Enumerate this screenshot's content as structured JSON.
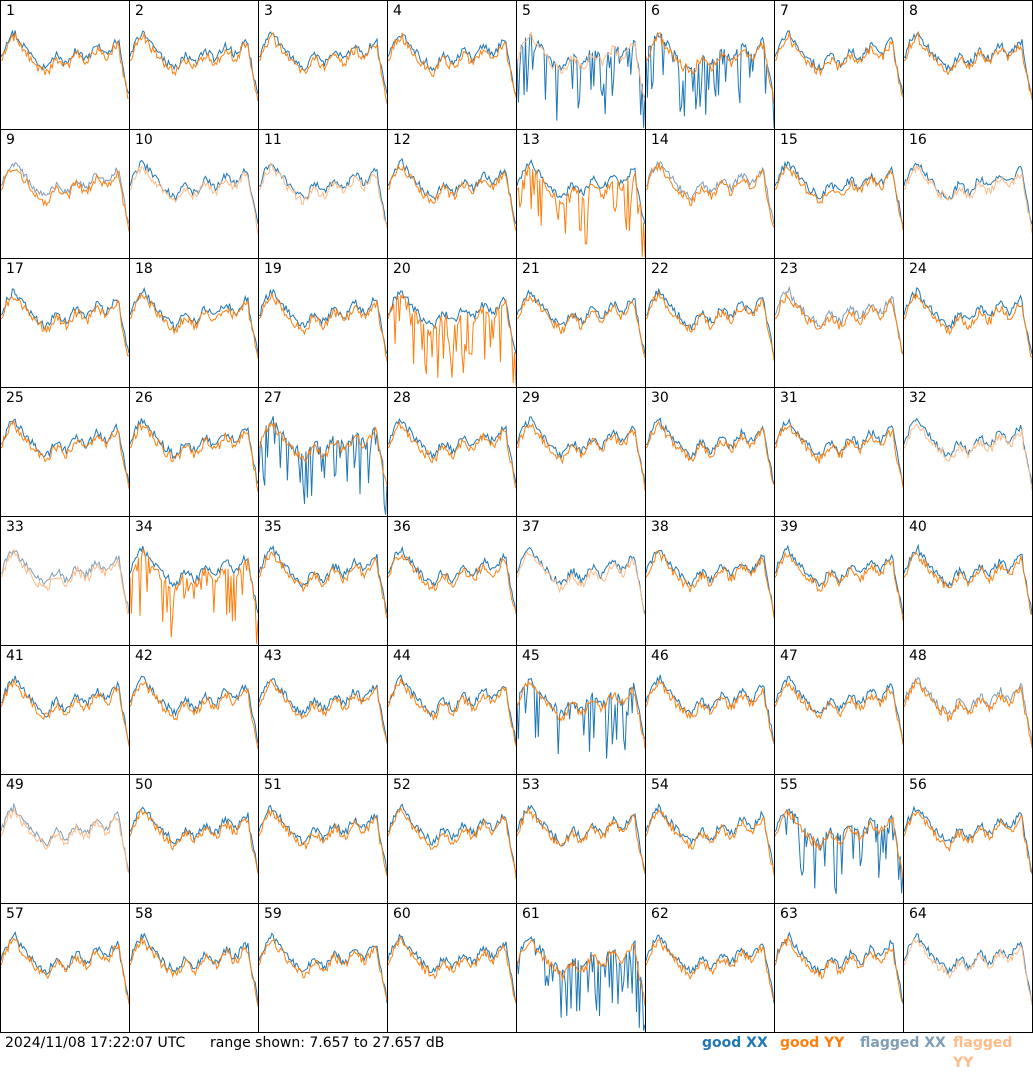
{
  "chart_data": {
    "type": "line",
    "layout": "8x8 small multiples",
    "panels": [
      "1",
      "2",
      "3",
      "4",
      "5",
      "6",
      "7",
      "8",
      "9",
      "10",
      "11",
      "12",
      "13",
      "14",
      "15",
      "16",
      "17",
      "18",
      "19",
      "20",
      "21",
      "22",
      "23",
      "24",
      "25",
      "26",
      "27",
      "28",
      "29",
      "30",
      "31",
      "32",
      "33",
      "34",
      "35",
      "36",
      "37",
      "38",
      "39",
      "40",
      "41",
      "42",
      "43",
      "44",
      "45",
      "46",
      "47",
      "48",
      "49",
      "50",
      "51",
      "52",
      "53",
      "54",
      "55",
      "56",
      "57",
      "58",
      "59",
      "60",
      "61",
      "62",
      "63",
      "64"
    ],
    "ylim": [
      7.657,
      27.657
    ],
    "unit": "dB",
    "series_legend": [
      {
        "name": "good XX",
        "color": "#1f77b4"
      },
      {
        "name": "good YY",
        "color": "#ff7f0e"
      },
      {
        "name": "flagged XX",
        "color": "#7f9db7"
      },
      {
        "name": "flagged YY",
        "color": "#ffbb88"
      }
    ],
    "flags": {
      "xx_flagged": [
        "9",
        "14",
        "23",
        "33",
        "48",
        "49"
      ],
      "yy_flagged": [
        "5",
        "10",
        "11",
        "16",
        "32",
        "33",
        "37",
        "49",
        "64"
      ],
      "xx_spiky": [
        "5",
        "6",
        "27",
        "45",
        "55",
        "61"
      ],
      "yy_spiky": [
        "13",
        "20",
        "34"
      ]
    }
  },
  "footer": {
    "timestamp": "2024/11/08 17:22:07 UTC",
    "range_text": "range shown: 7.657 to 27.657 dB",
    "legend_good_xx": "good XX",
    "legend_good_yy": "good YY",
    "legend_flagged_xx": "flagged XX",
    "legend_flagged_yy": "flagged YY"
  }
}
